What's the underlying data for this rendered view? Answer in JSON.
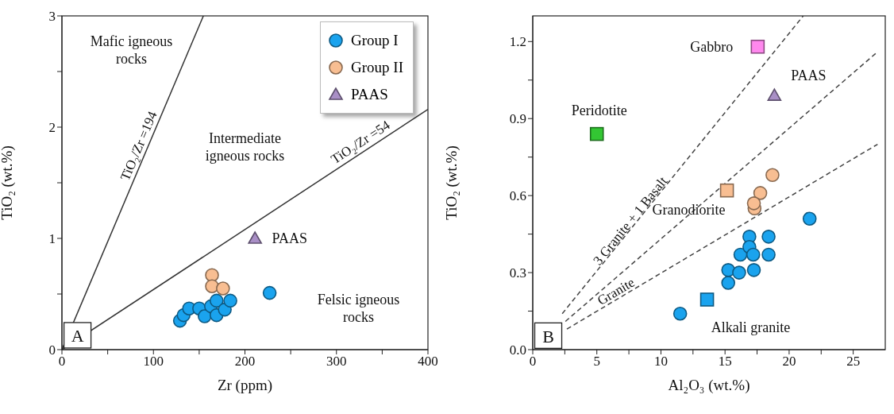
{
  "chart_data": [
    {
      "type": "scatter",
      "xlabel": "Zr (ppm)",
      "ylabel": "TiO₂ (wt.%)",
      "xlim": [
        0,
        400
      ],
      "ylim": [
        0,
        3
      ],
      "xticks": [
        0,
        {
          "value": 50,
          "label": null
        },
        100,
        {
          "value": 150,
          "label": null
        },
        200,
        {
          "value": 250,
          "label": null
        },
        300,
        {
          "value": 350,
          "label": null
        },
        400
      ],
      "yticks": [
        0,
        {
          "value": 0.5,
          "label": null
        },
        1,
        {
          "value": 1.5,
          "label": null
        },
        2,
        {
          "value": 2.5,
          "label": null
        },
        3
      ],
      "legend": "top right",
      "series": [
        {
          "name": "Group I",
          "color": "#1aa3ee",
          "marker": "circle",
          "x": [
            129,
            133,
            139,
            150,
            156,
            163,
            169,
            169,
            178,
            184,
            227
          ],
          "values": [
            0.26,
            0.31,
            0.37,
            0.37,
            0.3,
            0.39,
            0.44,
            0.31,
            0.36,
            0.44,
            0.51
          ]
        },
        {
          "name": "Group II",
          "color": "#f8be92",
          "marker": "circle",
          "x": [
            164,
            164,
            176
          ],
          "values": [
            0.67,
            0.57,
            0.55
          ]
        },
        {
          "name": "PAAS",
          "color": "#a98fc6",
          "marker": "triangle",
          "x": [
            211
          ],
          "values": [
            1.0
          ]
        },
        {
          "type": "line",
          "name": "TiO₂/Zr =194",
          "color": "#333333",
          "line_style": "solid",
          "marker": "none",
          "x": [
            0,
            154.6
          ],
          "values": [
            0,
            3
          ]
        },
        {
          "type": "line",
          "name": "TiO₂/Zr =54",
          "color": "#333333",
          "line_style": "solid",
          "marker": "none",
          "x": [
            0,
            400
          ],
          "values": [
            0,
            2.16
          ]
        }
      ],
      "annotations": [
        "A",
        "Mafic igneous\nrocks",
        "Intermediate\nigneous rocks",
        "Felsic igneous\nrocks",
        "PAAS"
      ]
    },
    {
      "type": "scatter",
      "xlabel": "Al₂O₃ (wt.%)",
      "ylabel": "TiO₂ (wt.%)",
      "xlim": [
        0,
        27.5
      ],
      "ylim": [
        0,
        1.3
      ],
      "xticks": [
        0,
        {
          "value": 2.5,
          "label": null
        },
        5,
        {
          "value": 7.5,
          "label": null
        },
        10,
        {
          "value": 12.5,
          "label": null
        },
        15,
        {
          "value": 17.5,
          "label": null
        },
        20,
        {
          "value": 22.5,
          "label": null
        },
        25
      ],
      "yticks": [
        {
          "value": 0,
          "label": "0.0"
        },
        {
          "value": 0.15,
          "label": null
        },
        0.3,
        {
          "value": 0.45,
          "label": null
        },
        0.6,
        {
          "value": 0.75,
          "label": null
        },
        0.9,
        {
          "value": 1.05,
          "label": null
        },
        1.2
      ],
      "series": [
        {
          "color": "#1aa3ee",
          "marker": "circle",
          "x": [
            11.5,
            15.25,
            15.25,
            16.1,
            16.2,
            16.9,
            16.9,
            17.2,
            17.25,
            18.4,
            18.4,
            21.6
          ],
          "values": [
            0.14,
            0.26,
            0.31,
            0.3,
            0.37,
            0.44,
            0.4,
            0.37,
            0.31,
            0.44,
            0.37,
            0.51
          ]
        },
        {
          "color": "#f8be92",
          "marker": "circle",
          "x": [
            18.7,
            17.75,
            17.3,
            17.25
          ],
          "values": [
            0.68,
            0.61,
            0.55,
            0.57
          ]
        },
        {
          "name": "PAAS",
          "color": "#a98fc6",
          "marker": "triangle",
          "x": [
            18.85
          ],
          "values": [
            0.99
          ]
        },
        {
          "name": "Gabbro",
          "color": "#ff88ee",
          "marker": "square",
          "x": [
            17.55
          ],
          "values": [
            1.18
          ]
        },
        {
          "name": "Peridotite",
          "color": "#33c633",
          "marker": "square",
          "x": [
            5.0
          ],
          "values": [
            0.84
          ]
        },
        {
          "name": "Granodiorite",
          "color": "#f8be92",
          "marker": "square",
          "x": [
            15.15
          ],
          "values": [
            0.62
          ]
        },
        {
          "name": "Alkali granite",
          "color": "#1aa3ee",
          "marker": "square",
          "x": [
            13.6
          ],
          "values": [
            0.195
          ]
        },
        {
          "type": "line",
          "name": "3 Granite + 1 Basalt",
          "color": "#444444",
          "line_style": "dashed",
          "marker": "none",
          "x": [
            2.3,
            21.1
          ],
          "values": [
            0.14,
            1.3
          ]
        },
        {
          "type": "line",
          "color": "#444444",
          "line_style": "dashed",
          "marker": "none",
          "x": [
            2.55,
            26.9
          ],
          "values": [
            0.11,
            1.16
          ]
        },
        {
          "type": "line",
          "name": "Granite",
          "color": "#444444",
          "line_style": "dashed",
          "marker": "none",
          "x": [
            2.66,
            26.9
          ],
          "values": [
            0.08,
            0.8
          ]
        }
      ],
      "annotations": [
        "B"
      ]
    }
  ]
}
